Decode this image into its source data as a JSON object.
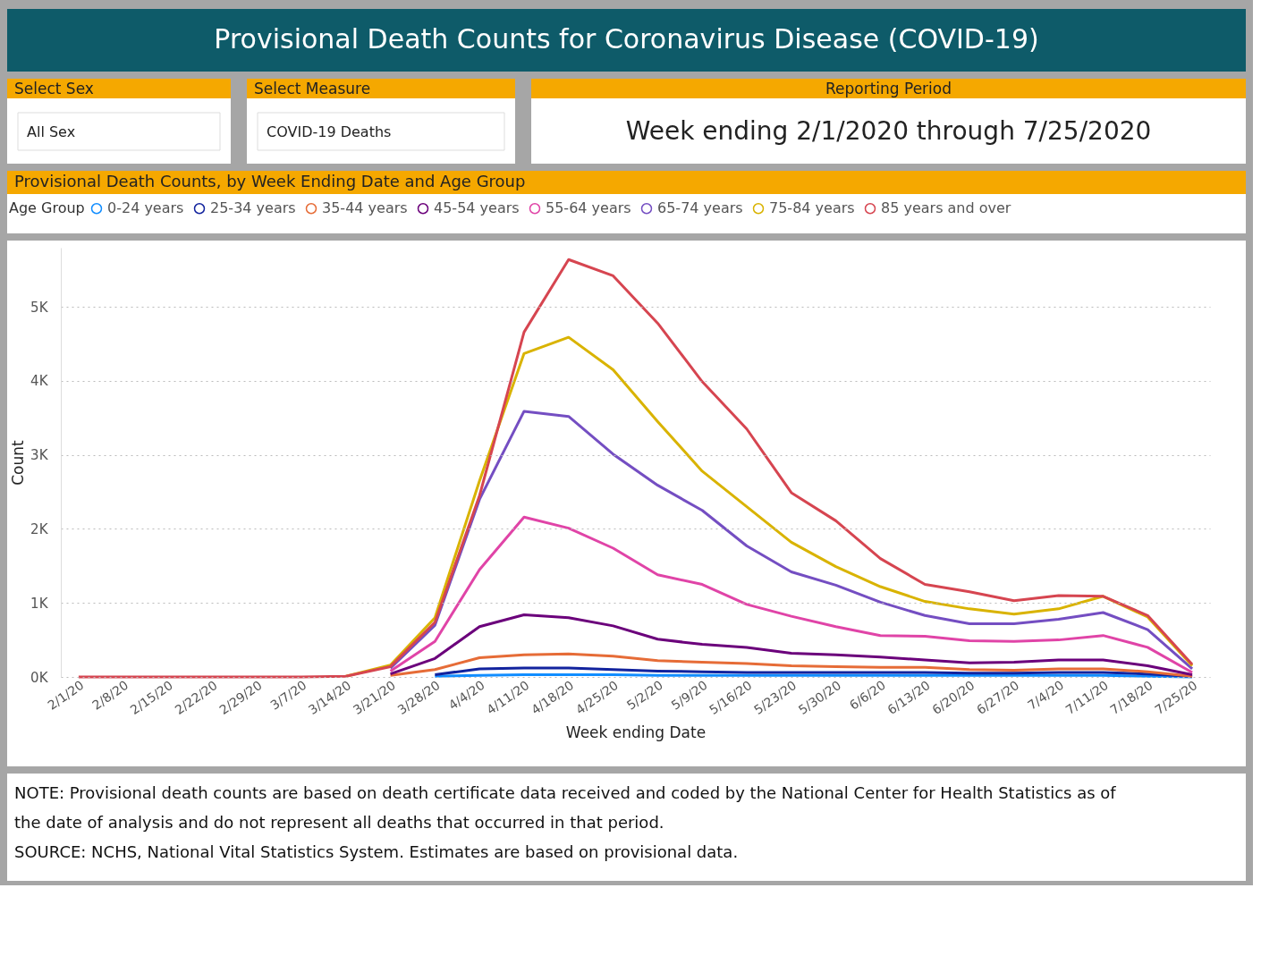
{
  "chart_data": {
    "type": "line",
    "title": "Provisional Death Counts for Coronavirus Disease (COVID-19)",
    "subtitle": "Provisional Death Counts, by Week Ending Date and Age Group",
    "xlabel": "Week ending Date",
    "ylabel": "Count",
    "legend_title": "Age Group",
    "legend": "top",
    "grid": "y",
    "annotations": [
      "Select Sex",
      "All Sex",
      "Select Measure",
      "COVID-19 Deaths",
      "Reporting Period",
      "Week ending 2/1/2020 through 7/25/2020",
      "NOTE: Provisional death counts are based on death certificate data received and coded by the National Center for Health Statistics as of the date of analysis and do not represent all deaths that occurred in that period.",
      "SOURCE: NCHS, National Vital Statistics System. Estimates are based on provisional data."
    ],
    "categories": [
      "2/1/20",
      "2/8/20",
      "2/15/20",
      "2/22/20",
      "2/29/20",
      "3/7/20",
      "3/14/20",
      "3/21/20",
      "3/28/20",
      "4/4/20",
      "4/11/20",
      "4/18/20",
      "4/25/20",
      "5/2/20",
      "5/9/20",
      "5/16/20",
      "5/23/20",
      "5/30/20",
      "6/6/20",
      "6/13/20",
      "6/20/20",
      "6/27/20",
      "7/4/20",
      "7/11/20",
      "7/18/20",
      "7/25/20"
    ],
    "ylim": [
      0,
      5800
    ],
    "yticks": [
      {
        "value": 0,
        "label": "0K"
      },
      {
        "value": 1000,
        "label": "1K"
      },
      {
        "value": 2000,
        "label": "2K"
      },
      {
        "value": 3000,
        "label": "3K"
      },
      {
        "value": 4000,
        "label": "4K"
      },
      {
        "value": 5000,
        "label": "5K"
      }
    ],
    "series": [
      {
        "name": "0-24 years",
        "color": "#118dff",
        "values": [
          null,
          null,
          null,
          null,
          null,
          null,
          null,
          null,
          10,
          20,
          30,
          30,
          30,
          20,
          20,
          20,
          20,
          20,
          20,
          20,
          20,
          20,
          20,
          20,
          10,
          0
        ]
      },
      {
        "name": "25-34 years",
        "color": "#12239e",
        "values": [
          null,
          null,
          null,
          null,
          null,
          null,
          null,
          null,
          30,
          110,
          120,
          120,
          100,
          80,
          70,
          60,
          60,
          60,
          60,
          60,
          50,
          50,
          60,
          60,
          40,
          10
        ]
      },
      {
        "name": "35-44 years",
        "color": "#e66c37",
        "values": [
          null,
          null,
          null,
          null,
          null,
          null,
          null,
          20,
          100,
          260,
          300,
          310,
          280,
          220,
          200,
          180,
          150,
          140,
          130,
          130,
          100,
          90,
          110,
          110,
          70,
          10
        ]
      },
      {
        "name": "45-54 years",
        "color": "#6b007b",
        "values": [
          null,
          null,
          null,
          null,
          null,
          null,
          null,
          40,
          250,
          680,
          840,
          800,
          690,
          510,
          440,
          400,
          320,
          300,
          270,
          230,
          190,
          200,
          230,
          230,
          150,
          30
        ]
      },
      {
        "name": "55-64 years",
        "color": "#e044a7",
        "values": [
          null,
          null,
          null,
          null,
          null,
          null,
          null,
          80,
          480,
          1450,
          2160,
          2010,
          1740,
          1380,
          1250,
          980,
          820,
          680,
          560,
          550,
          490,
          480,
          500,
          560,
          400,
          60
        ]
      },
      {
        "name": "65-74 years",
        "color": "#744ec2",
        "values": [
          null,
          null,
          null,
          null,
          null,
          null,
          null,
          120,
          700,
          2400,
          3590,
          3520,
          3010,
          2590,
          2250,
          1770,
          1420,
          1240,
          1010,
          830,
          720,
          720,
          780,
          870,
          640,
          110
        ]
      },
      {
        "name": "75-84 years",
        "color": "#d9b300",
        "values": [
          null,
          null,
          null,
          null,
          null,
          null,
          10,
          160,
          800,
          2650,
          4370,
          4590,
          4150,
          3450,
          2780,
          2300,
          1820,
          1490,
          1220,
          1020,
          920,
          850,
          920,
          1090,
          810,
          150
        ]
      },
      {
        "name": "85 years and over",
        "color": "#d64550",
        "values": [
          0,
          0,
          0,
          0,
          0,
          0,
          10,
          140,
          740,
          2450,
          4660,
          5640,
          5420,
          4780,
          3990,
          3350,
          2490,
          2110,
          1600,
          1250,
          1150,
          1030,
          1100,
          1090,
          830,
          170
        ]
      }
    ]
  }
}
